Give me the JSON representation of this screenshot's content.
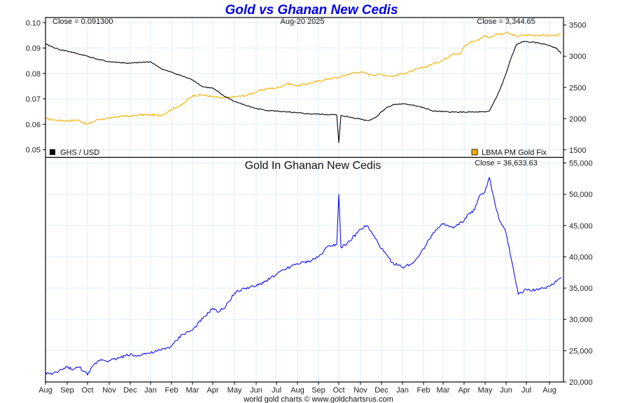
{
  "chart_data": [
    {
      "type": "line",
      "title": "Gold vs Ghanan New Cedis",
      "panel": "top",
      "date_label": "Aug-20  2025",
      "left_close_label": "Close = 0.091300",
      "right_close_label": "Close = 3,344.65",
      "x_ticks": [
        "Aug",
        "Sep",
        "Oct",
        "Nov",
        "Dec",
        "Jan",
        "Feb",
        "Mar",
        "Apr",
        "May",
        "Jun",
        "Jul",
        "Aug",
        "Sep",
        "Oct",
        "Nov",
        "Dec",
        "Jan",
        "Feb",
        "Mar",
        "Apr",
        "May",
        "Jun",
        "Jul",
        "Aug"
      ],
      "left_axis": {
        "ticks": [
          "0.10",
          "0.09",
          "0.08",
          "0.07",
          "0.06",
          "0.05"
        ],
        "values": [
          0.1,
          0.09,
          0.08,
          0.07,
          0.06,
          0.05
        ],
        "ylim": [
          0.047,
          0.102
        ]
      },
      "right_axis": {
        "ticks": [
          "3500",
          "3000",
          "2500",
          "2000",
          "1500"
        ],
        "values": [
          3500,
          3000,
          2500,
          2000,
          1500
        ],
        "ylim": [
          1380,
          3620
        ]
      },
      "grid": true,
      "legend": [
        {
          "label": "GHS / USD",
          "color": "#000000",
          "position": "bottom-left"
        },
        {
          "label": "LBMA PM Gold Fix",
          "color": "#f5b000",
          "position": "bottom-right"
        }
      ],
      "series": [
        {
          "name": "GHS / USD",
          "axis": "left",
          "color": "#000000",
          "x": [
            0,
            0.3,
            0.6,
            1,
            1.5,
            2,
            2.5,
            3,
            3.5,
            4,
            4.5,
            5,
            5.3,
            5.6,
            6,
            6.5,
            7,
            7.5,
            8,
            8.5,
            9,
            9.5,
            10,
            10.5,
            11,
            11.5,
            12,
            12.5,
            13,
            13.5,
            13.9,
            14.0,
            14.1,
            14.5,
            15,
            15.3,
            15.5,
            15.8,
            16,
            16.3,
            16.6,
            17,
            17.5,
            18,
            18.5,
            19,
            19.5,
            20,
            20.5,
            21,
            21.2,
            21.5,
            21.7,
            22,
            22.2,
            22.5,
            22.8,
            23,
            23.5,
            23.8,
            24,
            24.3,
            24.5
          ],
          "values": [
            0.0915,
            0.0905,
            0.0895,
            0.0888,
            0.0878,
            0.0868,
            0.0855,
            0.0846,
            0.0843,
            0.084,
            0.0843,
            0.0846,
            0.083,
            0.0815,
            0.0805,
            0.079,
            0.0775,
            0.0748,
            0.0742,
            0.0712,
            0.069,
            0.0675,
            0.0662,
            0.0655,
            0.0652,
            0.0648,
            0.0645,
            0.0641,
            0.064,
            0.0638,
            0.0637,
            0.0528,
            0.0635,
            0.0628,
            0.0621,
            0.0615,
            0.0618,
            0.0632,
            0.065,
            0.0668,
            0.0678,
            0.068,
            0.0676,
            0.0665,
            0.0652,
            0.065,
            0.0648,
            0.0648,
            0.0648,
            0.0648,
            0.0652,
            0.07,
            0.0735,
            0.08,
            0.085,
            0.0912,
            0.0925,
            0.0925,
            0.092,
            0.0915,
            0.091,
            0.09,
            0.0878
          ]
        },
        {
          "name": "LBMA PM Gold Fix",
          "axis": "right",
          "color": "#f5b000",
          "x": [
            0,
            0.5,
            1,
            1.5,
            2,
            2.5,
            3,
            3.5,
            4,
            4.5,
            5,
            5.5,
            6,
            6.5,
            7,
            7.5,
            8,
            8.5,
            9,
            9.5,
            10,
            10.5,
            11,
            11.5,
            12,
            12.5,
            13,
            13.5,
            14,
            14.5,
            15,
            15.5,
            16,
            16.5,
            17,
            17.5,
            18,
            18.5,
            19,
            19.5,
            19.8,
            20,
            20.3,
            20.6,
            21,
            21.2,
            21.5,
            21.8,
            22,
            22.5,
            23,
            23.5,
            24,
            24.5
          ],
          "values": [
            2000,
            1975,
            1965,
            1980,
            1910,
            1990,
            2000,
            2040,
            2040,
            2060,
            2060,
            2050,
            2150,
            2220,
            2370,
            2380,
            2350,
            2330,
            2350,
            2370,
            2430,
            2480,
            2490,
            2560,
            2530,
            2560,
            2600,
            2640,
            2660,
            2720,
            2750,
            2700,
            2710,
            2680,
            2720,
            2770,
            2820,
            2880,
            2940,
            3050,
            3030,
            3150,
            3230,
            3250,
            3330,
            3300,
            3350,
            3350,
            3380,
            3320,
            3340,
            3340,
            3330,
            3345
          ]
        }
      ]
    },
    {
      "type": "line",
      "panel": "bottom",
      "title": "Gold In Ghanan New Cedis",
      "close_label": "Close = 36,633.63",
      "right_axis": {
        "ticks": [
          "55,000",
          "50,000",
          "45,000",
          "40,000",
          "35,000",
          "30,000",
          "25,000",
          "20,000"
        ],
        "values": [
          55000,
          50000,
          45000,
          40000,
          35000,
          30000,
          25000,
          20000
        ],
        "ylim": [
          20000,
          55900
        ]
      },
      "grid": true,
      "series": [
        {
          "name": "Gold In Ghanan New Cedis",
          "color": "#1010ee",
          "x": [
            0,
            0.3,
            0.6,
            1,
            1.3,
            1.6,
            2,
            2.3,
            2.6,
            3,
            3.5,
            4,
            4.3,
            4.6,
            5,
            5.5,
            6,
            6.5,
            7,
            7.5,
            8,
            8.2,
            8.5,
            9,
            9.5,
            10,
            10.5,
            11,
            11.5,
            12,
            12.5,
            13,
            13.5,
            13.9,
            14.0,
            14.1,
            14.5,
            15,
            15.3,
            15.6,
            16,
            16.5,
            17,
            17.5,
            18,
            18.5,
            19,
            19.5,
            20,
            20.2,
            20.5,
            20.7,
            21,
            21.2,
            21.5,
            21.7,
            22,
            22.3,
            22.6,
            23,
            23.5,
            24,
            24.5
          ],
          "values": [
            21500,
            21200,
            21700,
            22400,
            22000,
            22400,
            21100,
            22800,
            23600,
            23400,
            23900,
            24400,
            24100,
            24500,
            24600,
            25100,
            25700,
            27600,
            28300,
            30100,
            31800,
            31200,
            31700,
            34200,
            35000,
            35300,
            36200,
            37200,
            38200,
            38900,
            39200,
            40000,
            41800,
            42000,
            50000,
            41500,
            42500,
            44400,
            45000,
            43500,
            41300,
            39100,
            38300,
            39000,
            41300,
            43900,
            45200,
            44600,
            45800,
            46800,
            47500,
            49500,
            50500,
            52700,
            48000,
            45700,
            43800,
            39000,
            34000,
            34800,
            34700,
            35300,
            36700
          ]
        }
      ]
    }
  ],
  "footer": {
    "credit": "world gold charts © www.goldchartsrus.com"
  }
}
